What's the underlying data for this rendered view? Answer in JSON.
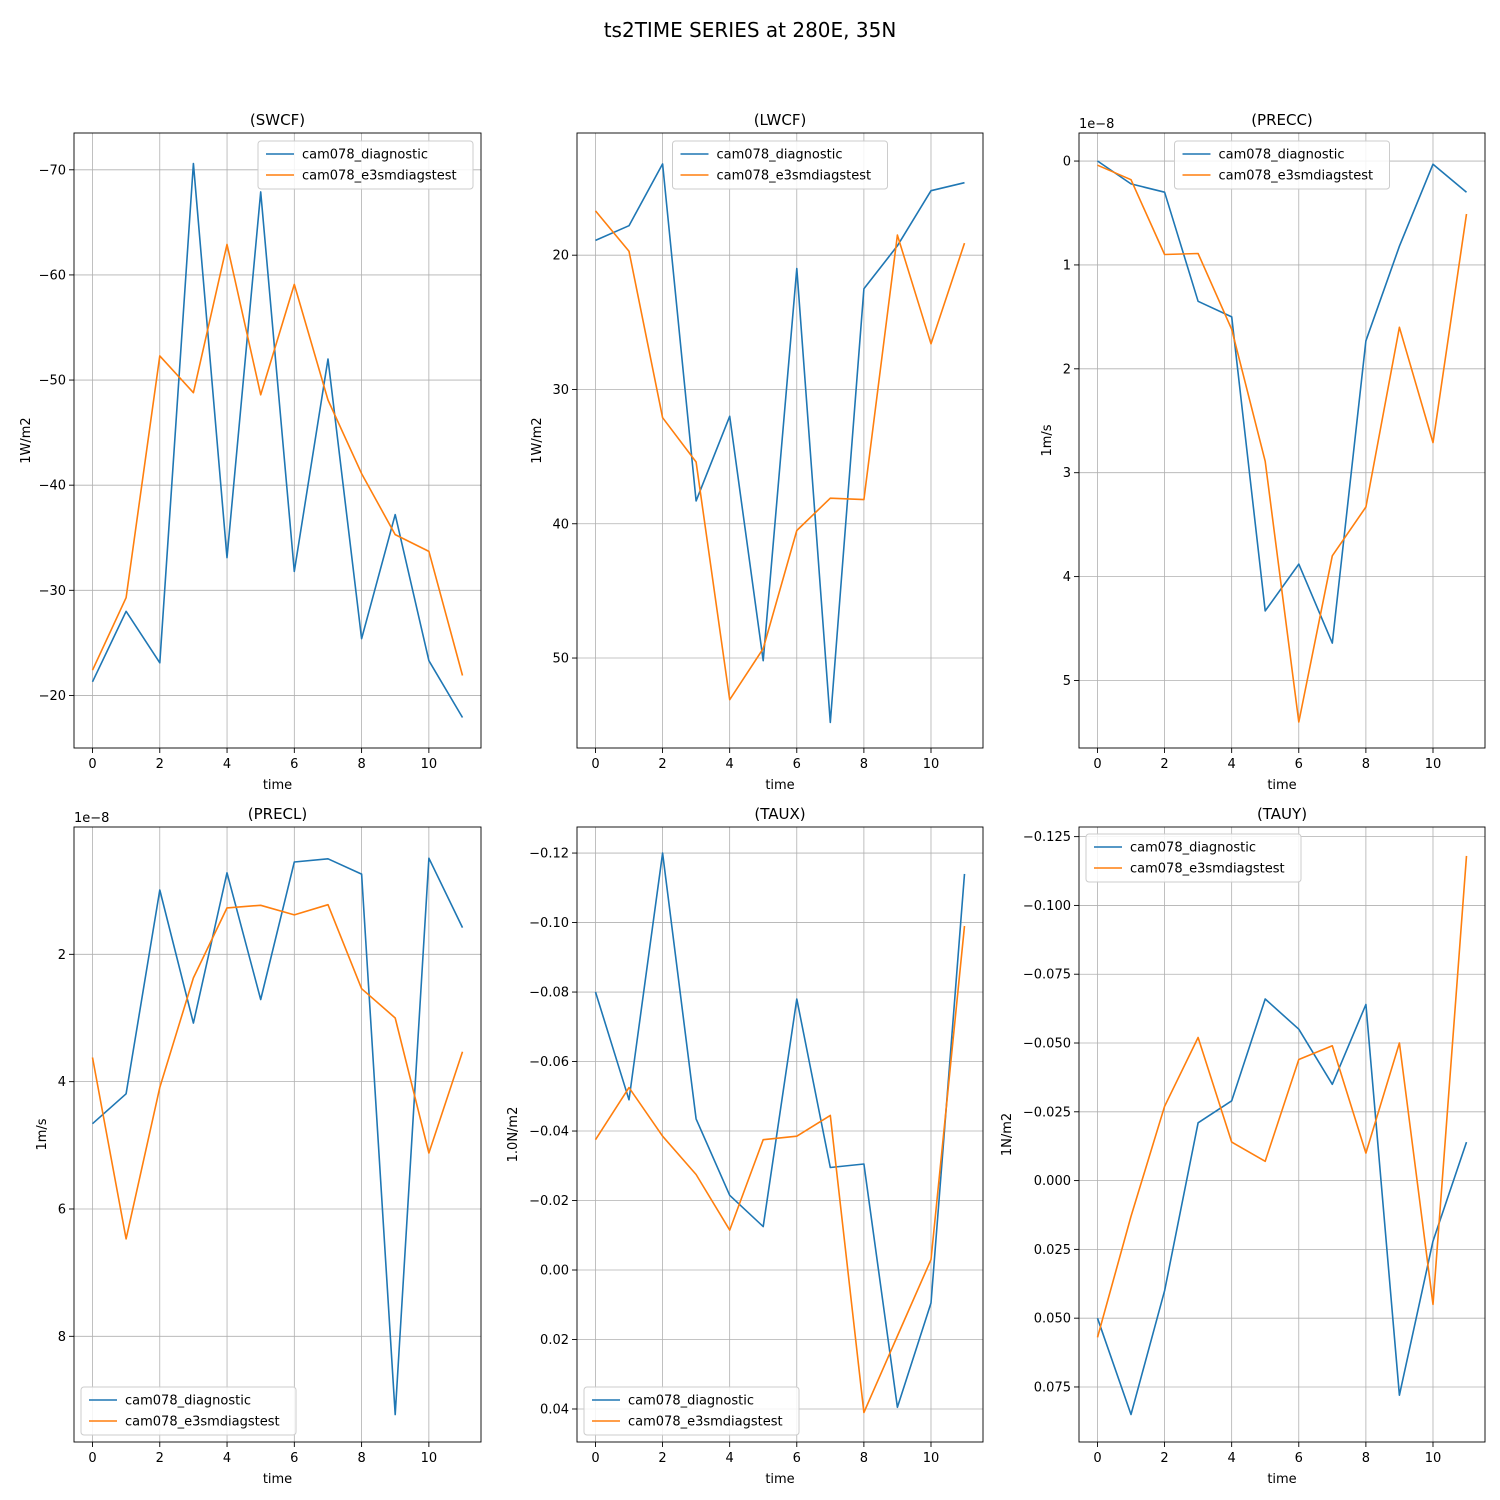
{
  "figure": {
    "suptitle": "ts2TIME SERIES at 280E, 35N",
    "colors": {
      "cam078_diagnostic": "#1f77b4",
      "cam078_e3smdiagstest": "#ff7f0e"
    }
  },
  "chart_data": [
    {
      "type": "line",
      "title": "(SWCF)",
      "xlabel": "time",
      "ylabel": "1W/m2",
      "offset_text": "",
      "x": [
        0,
        1,
        2,
        3,
        4,
        5,
        6,
        7,
        8,
        9,
        10,
        11
      ],
      "xlim": [
        -0.55,
        11.55
      ],
      "ylim": [
        -15,
        -73.5
      ],
      "xticks": [
        0,
        2,
        4,
        6,
        8,
        10
      ],
      "xtick_labels": [
        "0",
        "2",
        "4",
        "6",
        "8",
        "10"
      ],
      "yticks": [
        -70,
        -60,
        -50,
        -40,
        -30,
        -20
      ],
      "ytick_labels": [
        "−70",
        "−60",
        "−50",
        "−40",
        "−30",
        "−20"
      ],
      "grid": true,
      "legend_position": "upper right",
      "series": [
        {
          "name": "cam078_diagnostic",
          "color": "#1f77b4",
          "values": [
            -21.3,
            -28.0,
            -23.1,
            -70.6,
            -33.1,
            -67.9,
            -31.8,
            -52.0,
            -25.4,
            -37.2,
            -23.3,
            -17.9
          ]
        },
        {
          "name": "cam078_e3smdiagstest",
          "color": "#ff7f0e",
          "values": [
            -22.4,
            -29.3,
            -52.3,
            -48.8,
            -62.9,
            -48.6,
            -59.1,
            -48.1,
            -41.1,
            -35.3,
            -33.7,
            -21.9
          ]
        }
      ]
    },
    {
      "type": "line",
      "title": "(LWCF)",
      "xlabel": "time",
      "ylabel": "1W/m2",
      "offset_text": "",
      "x": [
        0,
        1,
        2,
        3,
        4,
        5,
        6,
        7,
        8,
        9,
        10,
        11
      ],
      "xlim": [
        -0.55,
        11.55
      ],
      "ylim": [
        56.7,
        10.9
      ],
      "xticks": [
        0,
        2,
        4,
        6,
        8,
        10
      ],
      "xtick_labels": [
        "0",
        "2",
        "4",
        "6",
        "8",
        "10"
      ],
      "yticks": [
        20,
        30,
        40,
        50
      ],
      "ytick_labels": [
        "20",
        "30",
        "40",
        "50"
      ],
      "grid": true,
      "legend_position": "upper center",
      "series": [
        {
          "name": "cam078_diagnostic",
          "color": "#1f77b4",
          "values": [
            18.9,
            17.8,
            13.2,
            38.3,
            32.0,
            50.2,
            21.0,
            54.8,
            22.5,
            19.3,
            15.2,
            14.6
          ]
        },
        {
          "name": "cam078_e3smdiagstest",
          "color": "#ff7f0e",
          "values": [
            16.7,
            19.7,
            32.1,
            35.4,
            53.1,
            49.3,
            40.5,
            38.1,
            38.2,
            18.5,
            26.6,
            19.1
          ]
        }
      ]
    },
    {
      "type": "line",
      "title": "(PRECC)",
      "xlabel": "time",
      "ylabel": "1m/s",
      "offset_text": "1e−8",
      "x": [
        0,
        1,
        2,
        3,
        4,
        5,
        6,
        7,
        8,
        9,
        10,
        11
      ],
      "xlim": [
        -0.55,
        11.55
      ],
      "ylim": [
        5.65,
        -0.27
      ],
      "xticks": [
        0,
        2,
        4,
        6,
        8,
        10
      ],
      "xtick_labels": [
        "0",
        "2",
        "4",
        "6",
        "8",
        "10"
      ],
      "yticks": [
        0,
        1,
        2,
        3,
        4,
        5
      ],
      "ytick_labels": [
        "0",
        "1",
        "2",
        "3",
        "4",
        "5"
      ],
      "grid": true,
      "legend_position": "upper center",
      "series": [
        {
          "name": "cam078_diagnostic",
          "color": "#1f77b4",
          "values": [
            0.0,
            0.22,
            0.3,
            1.35,
            1.5,
            4.33,
            3.88,
            4.64,
            1.73,
            0.82,
            0.03,
            0.3
          ]
        },
        {
          "name": "cam078_e3smdiagstest",
          "color": "#ff7f0e",
          "values": [
            0.04,
            0.18,
            0.9,
            0.89,
            1.62,
            2.89,
            5.4,
            3.8,
            3.33,
            1.6,
            2.71,
            0.51
          ]
        }
      ]
    },
    {
      "type": "line",
      "title": "(PRECL)",
      "xlabel": "time",
      "ylabel": "1m/s",
      "offset_text": "1e−8",
      "x": [
        0,
        1,
        2,
        3,
        4,
        5,
        6,
        7,
        8,
        9,
        10,
        11
      ],
      "xlim": [
        -0.55,
        11.55
      ],
      "ylim": [
        9.66,
        0.0
      ],
      "xticks": [
        0,
        2,
        4,
        6,
        8,
        10
      ],
      "xtick_labels": [
        "0",
        "2",
        "4",
        "6",
        "8",
        "10"
      ],
      "yticks": [
        2,
        4,
        6,
        8
      ],
      "ytick_labels": [
        "2",
        "4",
        "6",
        "8"
      ],
      "grid": true,
      "legend_position": "lower left",
      "series": [
        {
          "name": "cam078_diagnostic",
          "color": "#1f77b4",
          "values": [
            4.66,
            4.19,
            0.99,
            3.08,
            0.72,
            2.71,
            0.55,
            0.5,
            0.74,
            9.23,
            0.49,
            1.58
          ]
        },
        {
          "name": "cam078_e3smdiagstest",
          "color": "#ff7f0e",
          "values": [
            3.62,
            6.47,
            4.09,
            2.37,
            1.27,
            1.23,
            1.38,
            1.22,
            2.54,
            3.0,
            5.12,
            3.53
          ]
        }
      ]
    },
    {
      "type": "line",
      "title": "(TAUX)",
      "xlabel": "time",
      "ylabel": "1.0N/m2",
      "offset_text": "",
      "x": [
        0,
        1,
        2,
        3,
        4,
        5,
        6,
        7,
        8,
        9,
        10,
        11
      ],
      "xlim": [
        -0.55,
        11.55
      ],
      "ylim": [
        0.0495,
        -0.1275
      ],
      "xticks": [
        0,
        2,
        4,
        6,
        8,
        10
      ],
      "xtick_labels": [
        "0",
        "2",
        "4",
        "6",
        "8",
        "10"
      ],
      "yticks": [
        -0.12,
        -0.1,
        -0.08,
        -0.06,
        -0.04,
        -0.02,
        0.0,
        0.02,
        0.04
      ],
      "ytick_labels": [
        "−0.12",
        "−0.10",
        "−0.08",
        "−0.06",
        "−0.04",
        "−0.02",
        "0.00",
        "0.02",
        "0.04"
      ],
      "grid": true,
      "legend_position": "lower left",
      "series": [
        {
          "name": "cam078_diagnostic",
          "color": "#1f77b4",
          "values": [
            -0.08,
            -0.049,
            -0.12,
            -0.0435,
            -0.0215,
            -0.0125,
            -0.078,
            -0.0295,
            -0.0305,
            0.0395,
            0.0095,
            -0.114
          ]
        },
        {
          "name": "cam078_e3smdiagstest",
          "color": "#ff7f0e",
          "values": [
            -0.0375,
            -0.0525,
            -0.0385,
            -0.0275,
            -0.0115,
            -0.0375,
            -0.0385,
            -0.0445,
            0.041,
            0.019,
            -0.003,
            -0.099
          ]
        }
      ]
    },
    {
      "type": "line",
      "title": "(TAUY)",
      "xlabel": "time",
      "ylabel": "1N/m2",
      "offset_text": "",
      "x": [
        0,
        1,
        2,
        3,
        4,
        5,
        6,
        7,
        8,
        9,
        10,
        11
      ],
      "xlim": [
        -0.55,
        11.55
      ],
      "ylim": [
        0.095,
        -0.1285
      ],
      "xticks": [
        0,
        2,
        4,
        6,
        8,
        10
      ],
      "xtick_labels": [
        "0",
        "2",
        "4",
        "6",
        "8",
        "10"
      ],
      "yticks": [
        -0.125,
        -0.1,
        -0.075,
        -0.05,
        -0.025,
        0.0,
        0.025,
        0.05,
        0.075
      ],
      "ytick_labels": [
        "−0.125",
        "−0.100",
        "−0.075",
        "−0.050",
        "−0.025",
        "0.000",
        "0.025",
        "0.050",
        "0.075"
      ],
      "grid": true,
      "legend_position": "upper left",
      "series": [
        {
          "name": "cam078_diagnostic",
          "color": "#1f77b4",
          "values": [
            0.05,
            0.085,
            0.04,
            -0.021,
            -0.029,
            -0.066,
            -0.055,
            -0.035,
            -0.064,
            0.078,
            0.022,
            -0.014
          ]
        },
        {
          "name": "cam078_e3smdiagstest",
          "color": "#ff7f0e",
          "values": [
            0.057,
            0.013,
            -0.027,
            -0.052,
            -0.014,
            -0.007,
            -0.044,
            -0.049,
            -0.01,
            -0.05,
            0.045,
            -0.118
          ]
        }
      ]
    }
  ]
}
